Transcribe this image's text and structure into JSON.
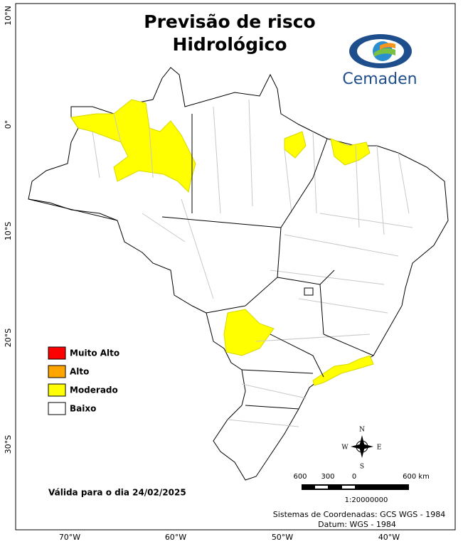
{
  "title": [
    "Previsão de risco",
    "Hidrológico"
  ],
  "logo": "Cemaden",
  "legend": [
    {
      "label": "Muito Alto",
      "color": "#ff0000"
    },
    {
      "label": "Alto",
      "color": "#ffa500"
    },
    {
      "label": "Moderado",
      "color": "#ffff00"
    },
    {
      "label": "Baixo",
      "color": "#ffffff"
    }
  ],
  "valid": "Válida para o dia 24/02/2025",
  "scale": {
    "labels": [
      "600",
      "300",
      "0",
      "600 km"
    ],
    "ratio": "1:20000000"
  },
  "compass": {
    "n": "N",
    "s": "S",
    "e": "E",
    "w": "W"
  },
  "credits": [
    "Sistemas de Coordenadas: GCS WGS - 1984",
    "Datum: WGS - 1984"
  ],
  "axes": {
    "lat": [
      "10°N",
      "0°",
      "10°S",
      "20°S",
      "30°S"
    ],
    "lon": [
      "70°W",
      "60°W",
      "50°W",
      "40°W"
    ]
  }
}
